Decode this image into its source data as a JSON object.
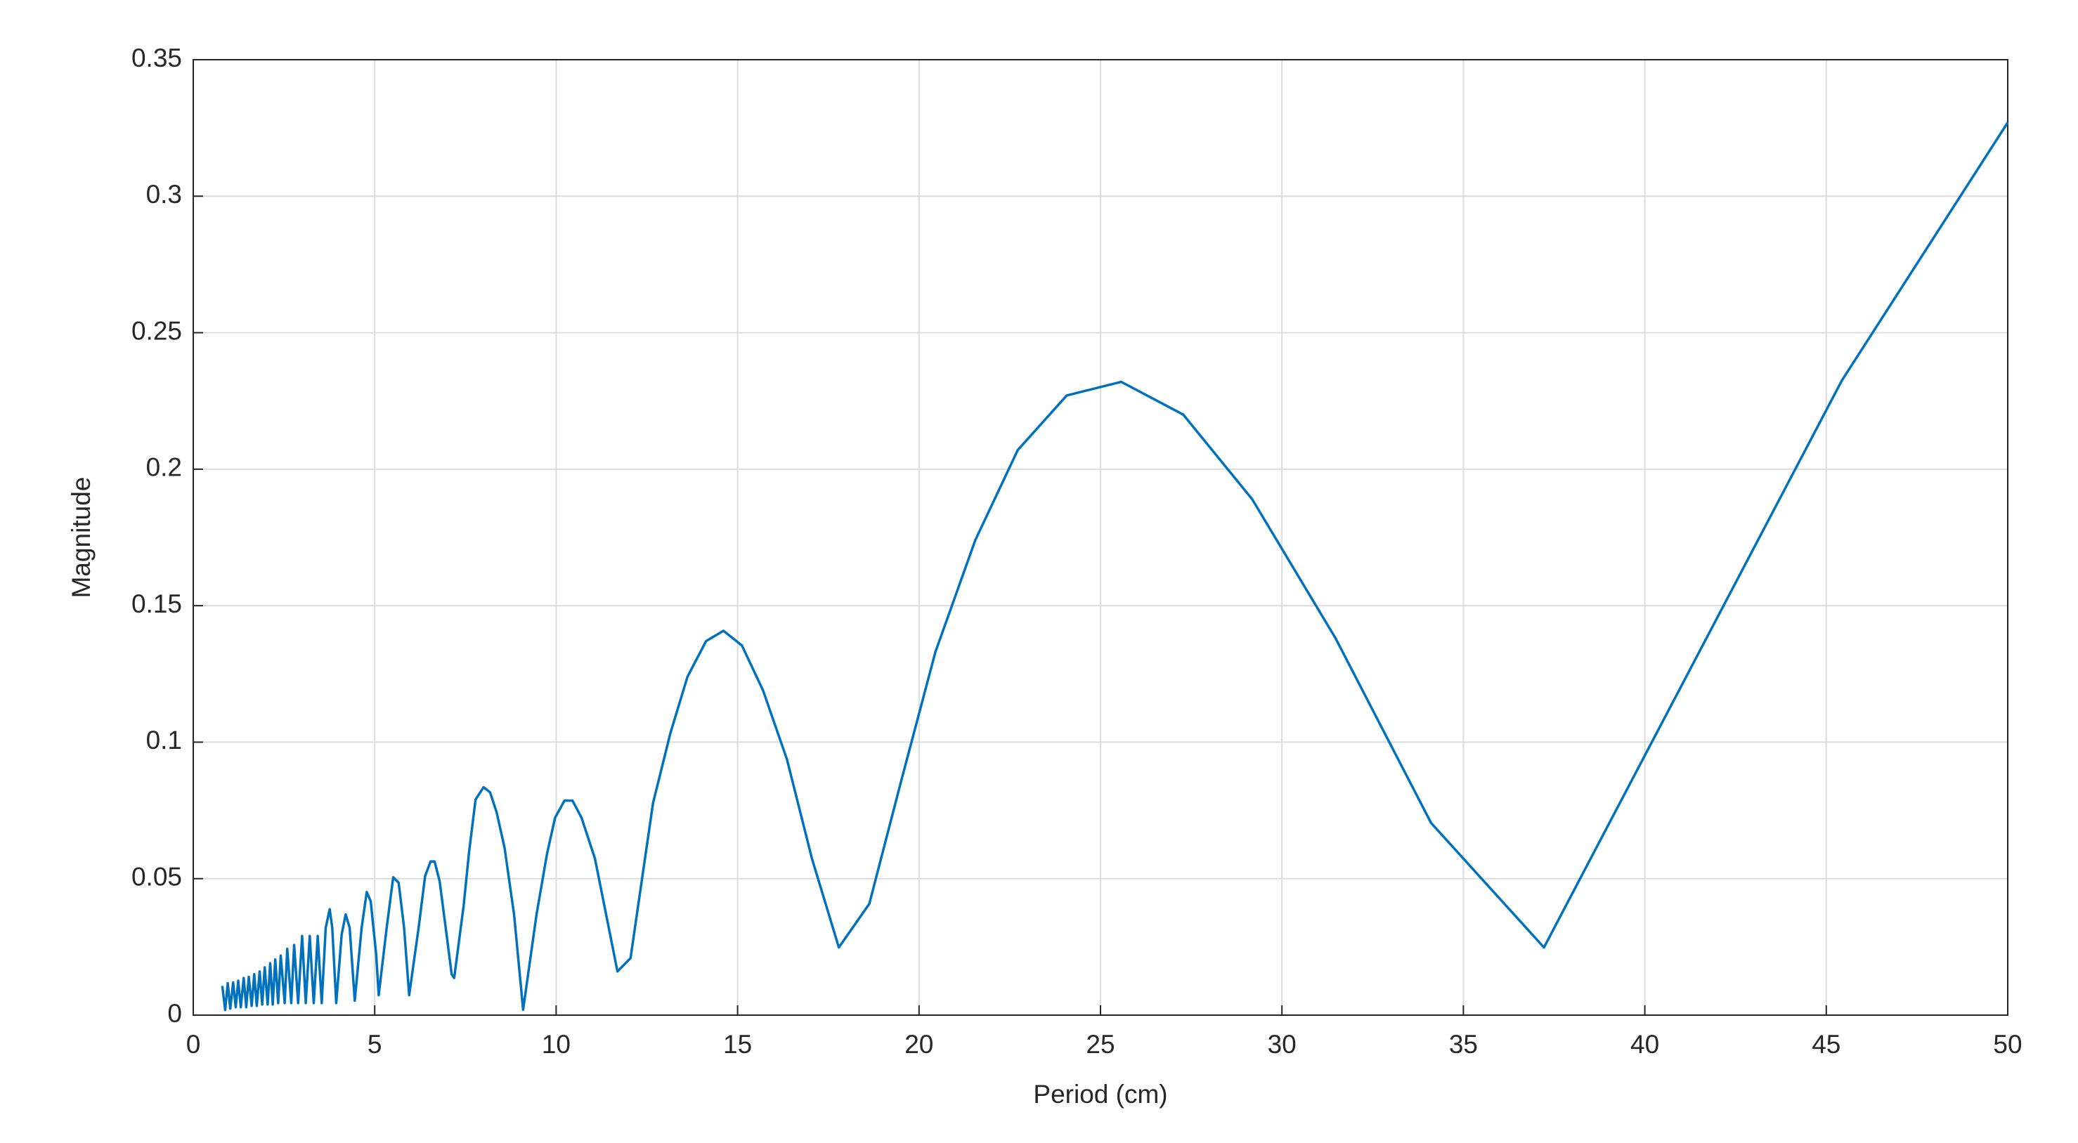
{
  "chart_data": {
    "type": "line",
    "xlabel": "Period (cm)",
    "ylabel": "Magnitude",
    "x": [
      0.8,
      0.88,
      0.95,
      1.02,
      1.1,
      1.17,
      1.24,
      1.31,
      1.39,
      1.46,
      1.53,
      1.61,
      1.68,
      1.75,
      1.83,
      1.9,
      1.97,
      2.05,
      2.12,
      2.19,
      2.26,
      2.34,
      2.41,
      2.52,
      2.59,
      2.7,
      2.78,
      2.89,
      3.0,
      3.1,
      3.21,
      3.32,
      3.43,
      3.54,
      3.65,
      3.76,
      3.83,
      3.94,
      4.09,
      4.2,
      4.31,
      4.45,
      4.64,
      4.78,
      4.89,
      5.04,
      5.11,
      5.33,
      5.51,
      5.66,
      5.81,
      5.95,
      6.21,
      6.39,
      6.54,
      6.65,
      6.79,
      6.98,
      7.12,
      7.19,
      7.45,
      7.6,
      7.78,
      8.0,
      8.18,
      8.36,
      8.58,
      8.84,
      9.09,
      9.46,
      9.75,
      9.97,
      10.23,
      10.45,
      10.7,
      11.07,
      11.69,
      12.05,
      12.67,
      13.15,
      13.62,
      14.13,
      14.61,
      15.12,
      15.7,
      16.36,
      17.05,
      17.79,
      18.63,
      19.5,
      20.45,
      21.55,
      22.72,
      24.07,
      25.57,
      27.28,
      29.18,
      31.48,
      34.11,
      37.22,
      45.43,
      50.0
    ],
    "values": [
      0.0107,
      0.0019,
      0.0117,
      0.0024,
      0.012,
      0.0029,
      0.0126,
      0.0029,
      0.0136,
      0.0029,
      0.014,
      0.0034,
      0.015,
      0.0034,
      0.016,
      0.0039,
      0.0175,
      0.0039,
      0.019,
      0.0039,
      0.0204,
      0.0044,
      0.0218,
      0.0044,
      0.0243,
      0.0044,
      0.0257,
      0.0044,
      0.029,
      0.0044,
      0.029,
      0.0044,
      0.029,
      0.0044,
      0.032,
      0.0388,
      0.032,
      0.0044,
      0.0296,
      0.0369,
      0.032,
      0.0053,
      0.032,
      0.0451,
      0.0417,
      0.0223,
      0.0073,
      0.032,
      0.0505,
      0.0485,
      0.032,
      0.0073,
      0.032,
      0.051,
      0.0563,
      0.0563,
      0.049,
      0.0296,
      0.015,
      0.0136,
      0.04,
      0.0597,
      0.079,
      0.0835,
      0.0816,
      0.0743,
      0.0612,
      0.0369,
      0.002,
      0.0369,
      0.0592,
      0.0723,
      0.0786,
      0.0786,
      0.0723,
      0.0573,
      0.016,
      0.0209,
      0.0777,
      0.1034,
      0.124,
      0.137,
      0.1408,
      0.1354,
      0.119,
      0.0937,
      0.0573,
      0.0248,
      0.0408,
      0.0854,
      0.133,
      0.174,
      0.207,
      0.227,
      0.232,
      0.22,
      0.189,
      0.138,
      0.0704,
      0.0248,
      0.2325,
      0.327
    ],
    "color": "#0072bd",
    "xlim": [
      0,
      50
    ],
    "xticks": [
      0,
      5,
      10,
      15,
      20,
      25,
      30,
      35,
      40,
      45,
      50
    ],
    "ylim": [
      0,
      0.35
    ],
    "yticks": [
      0,
      0.05,
      0.1,
      0.15,
      0.2,
      0.25,
      0.3,
      0.35
    ],
    "grid": true
  }
}
